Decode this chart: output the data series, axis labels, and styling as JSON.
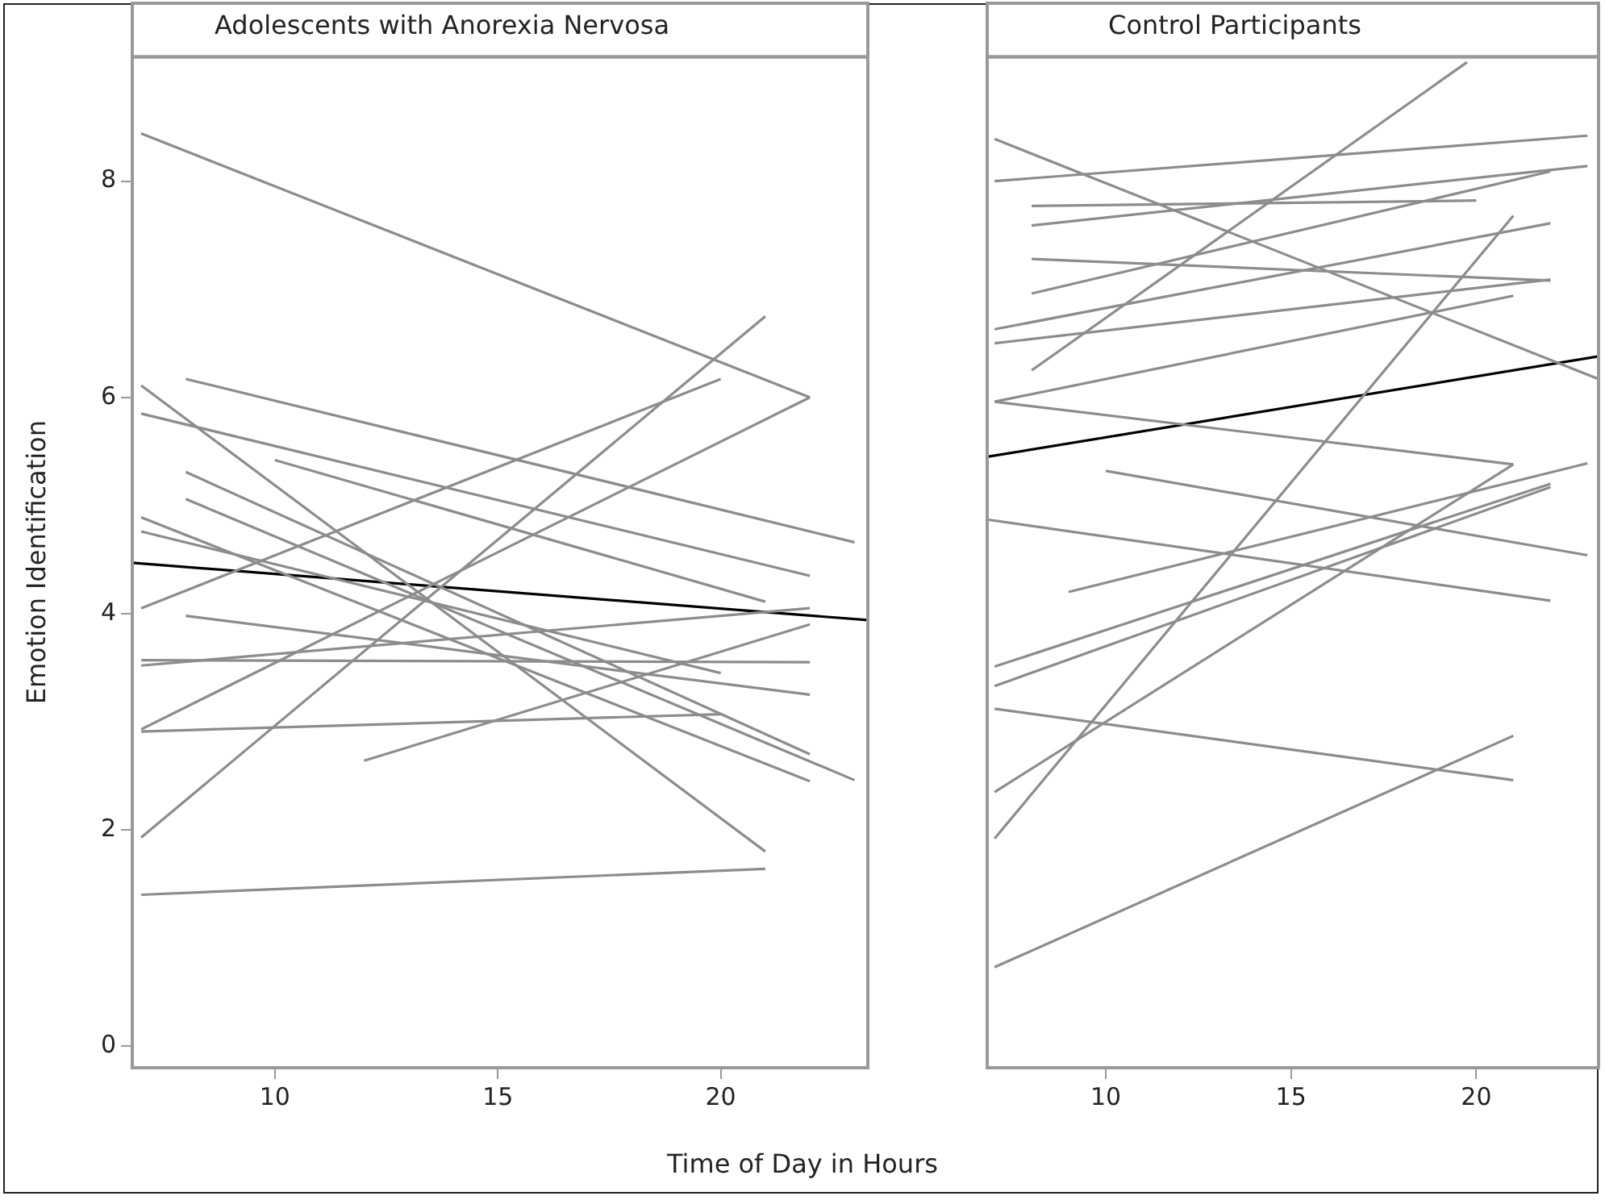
{
  "chart_data": [
    {
      "type": "line",
      "title": "Adolescents with Anorexia Nervosa",
      "xlabel": "Time of Day in Hours",
      "ylabel": "Emotion Identification",
      "xlim": [
        6.8,
        23.3
      ],
      "ylim": [
        -0.2,
        9.15
      ],
      "xticks": [
        10,
        15,
        20
      ],
      "yticks": [
        0,
        2,
        4,
        6,
        8
      ],
      "marker": "none",
      "grid": false,
      "legend": false,
      "series": [
        {
          "color": "#8c8c8c",
          "x": [
            7,
            22
          ],
          "values": [
            8.44,
            6.0
          ]
        },
        {
          "color": "#8c8c8c",
          "x": [
            7,
            21
          ],
          "values": [
            6.11,
            1.8
          ]
        },
        {
          "color": "#8c8c8c",
          "x": [
            8,
            23
          ],
          "values": [
            6.17,
            4.66
          ]
        },
        {
          "color": "#8c8c8c",
          "x": [
            7,
            22
          ],
          "values": [
            5.85,
            4.35
          ]
        },
        {
          "color": "#8c8c8c",
          "x": [
            10,
            21
          ],
          "values": [
            5.42,
            4.11
          ]
        },
        {
          "color": "#8c8c8c",
          "x": [
            7,
            20
          ],
          "values": [
            4.76,
            3.45
          ]
        },
        {
          "color": "#8c8c8c",
          "x": [
            8,
            22
          ],
          "values": [
            5.31,
            2.7
          ]
        },
        {
          "color": "#8c8c8c",
          "x": [
            8,
            23
          ],
          "values": [
            5.06,
            2.46
          ]
        },
        {
          "color": "#8c8c8c",
          "x": [
            7,
            22
          ],
          "values": [
            4.89,
            2.45
          ]
        },
        {
          "color": "#8c8c8c",
          "x": [
            7,
            20
          ],
          "values": [
            4.05,
            6.17
          ]
        },
        {
          "color": "#8c8c8c",
          "x": [
            7,
            21
          ],
          "values": [
            1.93,
            6.75
          ]
        },
        {
          "color": "#8c8c8c",
          "x": [
            7,
            22
          ],
          "values": [
            2.93,
            6.0
          ]
        },
        {
          "color": "#8c8c8c",
          "x": [
            7,
            20
          ],
          "values": [
            2.91,
            3.07
          ]
        },
        {
          "color": "#8c8c8c",
          "x": [
            12,
            22
          ],
          "values": [
            2.64,
            3.9
          ]
        },
        {
          "color": "#8c8c8c",
          "x": [
            7,
            22
          ],
          "values": [
            3.57,
            3.55
          ]
        },
        {
          "color": "#8c8c8c",
          "x": [
            7,
            22
          ],
          "values": [
            3.52,
            4.05
          ]
        },
        {
          "color": "#8c8c8c",
          "x": [
            8,
            22
          ],
          "values": [
            3.98,
            3.25
          ]
        },
        {
          "color": "#8c8c8c",
          "x": [
            7,
            21
          ],
          "values": [
            1.4,
            1.64
          ]
        },
        {
          "color": "#000000",
          "x": [
            6.8,
            23.3
          ],
          "values": [
            4.47,
            3.94
          ]
        }
      ]
    },
    {
      "type": "line",
      "title": "Control Participants",
      "xlim": [
        6.8,
        23.3
      ],
      "ylim": [
        -0.2,
        9.15
      ],
      "xticks": [
        10,
        15,
        20
      ],
      "yticks": [
        0,
        2,
        4,
        6,
        8
      ],
      "tick_labels": "x",
      "marker": "none",
      "grid": false,
      "legend": false,
      "series": [
        {
          "color": "#8c8c8c",
          "x": [
            8,
            19.75
          ],
          "values": [
            6.25,
            9.1
          ]
        },
        {
          "color": "#8c8c8c",
          "x": [
            7,
            23.3
          ],
          "values": [
            8.39,
            6.17
          ]
        },
        {
          "color": "#8c8c8c",
          "x": [
            7,
            23
          ],
          "values": [
            8.0,
            8.42
          ]
        },
        {
          "color": "#8c8c8c",
          "x": [
            8,
            20
          ],
          "values": [
            7.77,
            7.82
          ]
        },
        {
          "color": "#8c8c8c",
          "x": [
            8,
            23
          ],
          "values": [
            7.59,
            8.14
          ]
        },
        {
          "color": "#8c8c8c",
          "x": [
            8,
            22
          ],
          "values": [
            7.28,
            7.08
          ]
        },
        {
          "color": "#8c8c8c",
          "x": [
            8,
            22
          ],
          "values": [
            6.96,
            8.09
          ]
        },
        {
          "color": "#8c8c8c",
          "x": [
            7,
            22
          ],
          "values": [
            6.63,
            7.61
          ]
        },
        {
          "color": "#8c8c8c",
          "x": [
            7,
            22
          ],
          "values": [
            6.5,
            7.09
          ]
        },
        {
          "color": "#8c8c8c",
          "x": [
            7,
            21
          ],
          "values": [
            5.96,
            6.94
          ]
        },
        {
          "color": "#8c8c8c",
          "x": [
            7,
            21
          ],
          "values": [
            5.96,
            5.38
          ]
        },
        {
          "color": "#8c8c8c",
          "x": [
            10,
            23
          ],
          "values": [
            5.32,
            4.54
          ]
        },
        {
          "color": "#8c8c8c",
          "x": [
            6.8,
            22
          ],
          "values": [
            4.87,
            4.12
          ]
        },
        {
          "color": "#8c8c8c",
          "x": [
            9,
            23
          ],
          "values": [
            4.2,
            5.39
          ]
        },
        {
          "color": "#8c8c8c",
          "x": [
            7,
            21
          ],
          "values": [
            1.92,
            7.68
          ]
        },
        {
          "color": "#8c8c8c",
          "x": [
            7,
            22
          ],
          "values": [
            3.51,
            5.2
          ]
        },
        {
          "color": "#8c8c8c",
          "x": [
            7,
            22
          ],
          "values": [
            3.33,
            5.17
          ]
        },
        {
          "color": "#8c8c8c",
          "x": [
            7,
            21
          ],
          "values": [
            2.35,
            5.38
          ]
        },
        {
          "color": "#8c8c8c",
          "x": [
            7,
            21
          ],
          "values": [
            3.12,
            2.46
          ]
        },
        {
          "color": "#8c8c8c",
          "x": [
            7,
            21
          ],
          "values": [
            0.73,
            2.87
          ]
        },
        {
          "color": "#000000",
          "x": [
            6.8,
            23.3
          ],
          "values": [
            5.45,
            6.38
          ]
        }
      ]
    }
  ]
}
